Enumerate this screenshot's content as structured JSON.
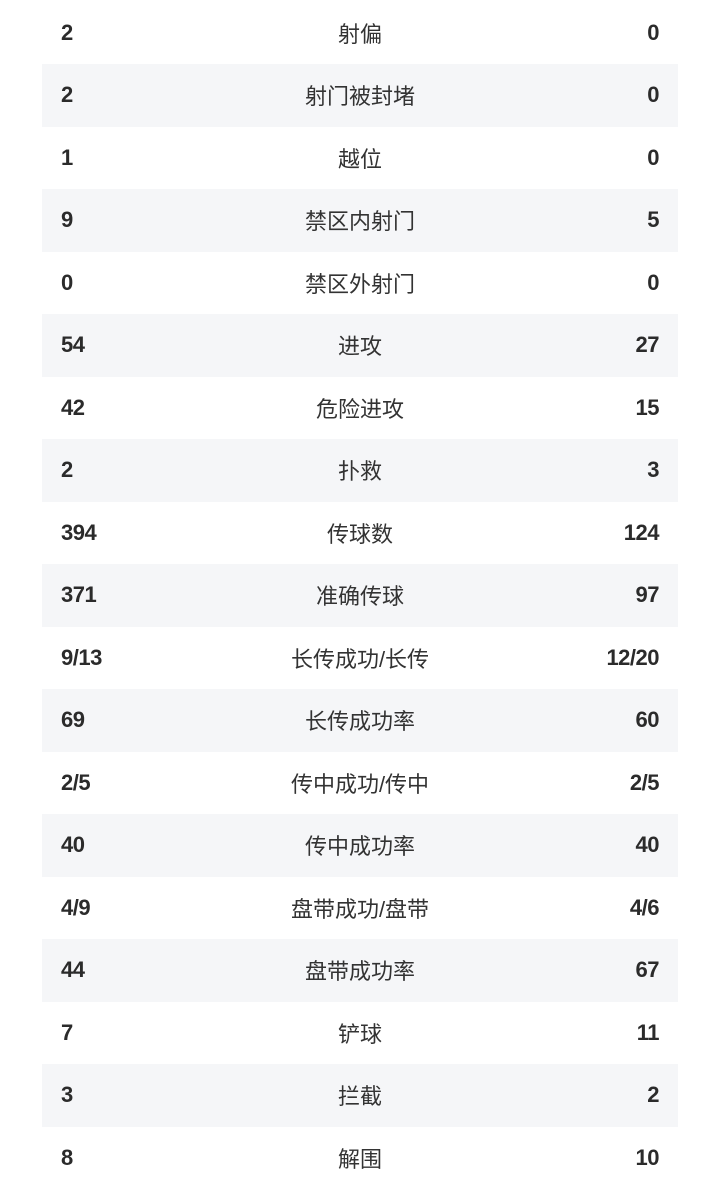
{
  "rows": [
    {
      "home": "2",
      "label": "射偏",
      "away": "0"
    },
    {
      "home": "2",
      "label": "射门被封堵",
      "away": "0"
    },
    {
      "home": "1",
      "label": "越位",
      "away": "0"
    },
    {
      "home": "9",
      "label": "禁区内射门",
      "away": "5"
    },
    {
      "home": "0",
      "label": "禁区外射门",
      "away": "0"
    },
    {
      "home": "54",
      "label": "进攻",
      "away": "27"
    },
    {
      "home": "42",
      "label": "危险进攻",
      "away": "15"
    },
    {
      "home": "2",
      "label": "扑救",
      "away": "3"
    },
    {
      "home": "394",
      "label": "传球数",
      "away": "124"
    },
    {
      "home": "371",
      "label": "准确传球",
      "away": "97"
    },
    {
      "home": "9/13",
      "label": "长传成功/长传",
      "away": "12/20"
    },
    {
      "home": "69",
      "label": "长传成功率",
      "away": "60"
    },
    {
      "home": "2/5",
      "label": "传中成功/传中",
      "away": "2/5"
    },
    {
      "home": "40",
      "label": "传中成功率",
      "away": "40"
    },
    {
      "home": "4/9",
      "label": "盘带成功/盘带",
      "away": "4/6"
    },
    {
      "home": "44",
      "label": "盘带成功率",
      "away": "67"
    },
    {
      "home": "7",
      "label": "铲球",
      "away": "11"
    },
    {
      "home": "3",
      "label": "拦截",
      "away": "2"
    },
    {
      "home": "8",
      "label": "解围",
      "away": "10"
    }
  ]
}
